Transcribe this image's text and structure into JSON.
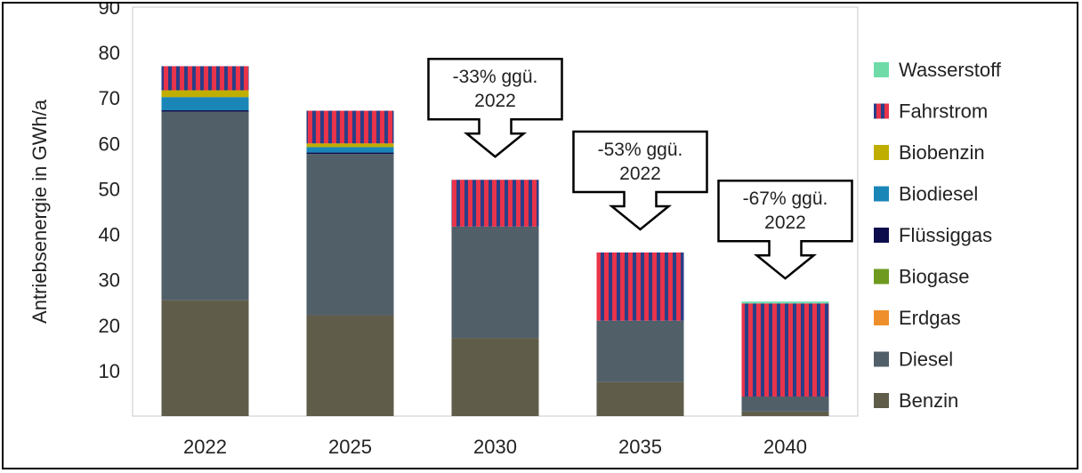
{
  "chart_data": {
    "type": "bar",
    "stacked": true,
    "categories": [
      "2022",
      "2025",
      "2030",
      "2035",
      "2040"
    ],
    "ylabel": "Antriebsenergie in GWh/a",
    "xlabel": "",
    "ylim": [
      0,
      90
    ],
    "yticks": [
      10,
      20,
      30,
      40,
      50,
      60,
      70,
      80,
      90
    ],
    "grid": false,
    "legend_position": "right",
    "series": [
      {
        "name": "Benzin",
        "color": "#5f5d4a",
        "values": [
          25.5,
          22.2,
          17.2,
          7.5,
          1.0
        ]
      },
      {
        "name": "Diesel",
        "color": "#515f69",
        "values": [
          41.5,
          35.5,
          24.5,
          13.5,
          3.3
        ]
      },
      {
        "name": "Erdgas",
        "color": "#ef8f2b",
        "values": [
          0.0,
          0.0,
          0.0,
          0.0,
          0.0
        ]
      },
      {
        "name": "Biogase",
        "color": "#6e9a1f",
        "values": [
          0.0,
          0.0,
          0.0,
          0.0,
          0.0
        ]
      },
      {
        "name": "Flüssiggas",
        "color": "#0d0d4d",
        "values": [
          0.3,
          0.3,
          0.0,
          0.0,
          0.0
        ]
      },
      {
        "name": "Biodiesel",
        "color": "#1a86b8",
        "values": [
          2.9,
          1.2,
          0.0,
          0.0,
          0.0
        ]
      },
      {
        "name": "Biobenzin",
        "color": "#bfae00",
        "values": [
          1.5,
          0.8,
          0.0,
          0.0,
          0.0
        ]
      },
      {
        "name": "Fahrstrom",
        "color": "#e8334a",
        "stripe_color": "#2a3e86",
        "values": [
          5.3,
          7.2,
          10.3,
          15.0,
          20.5
        ]
      },
      {
        "name": "Wasserstoff",
        "color": "#6fdca8",
        "values": [
          0.0,
          0.0,
          0.0,
          0.0,
          0.4
        ]
      }
    ],
    "legend_order": [
      "Wasserstoff",
      "Fahrstrom",
      "Biobenzin",
      "Biodiesel",
      "Flüssiggas",
      "Biogase",
      "Erdgas",
      "Diesel",
      "Benzin"
    ],
    "annotations": [
      {
        "lines": [
          "-33% ggü.",
          "2022"
        ],
        "category": "2030"
      },
      {
        "lines": [
          "-53% ggü.",
          "2022"
        ],
        "category": "2035"
      },
      {
        "lines": [
          "-67% ggü.",
          "2022"
        ],
        "category": "2040"
      }
    ]
  }
}
